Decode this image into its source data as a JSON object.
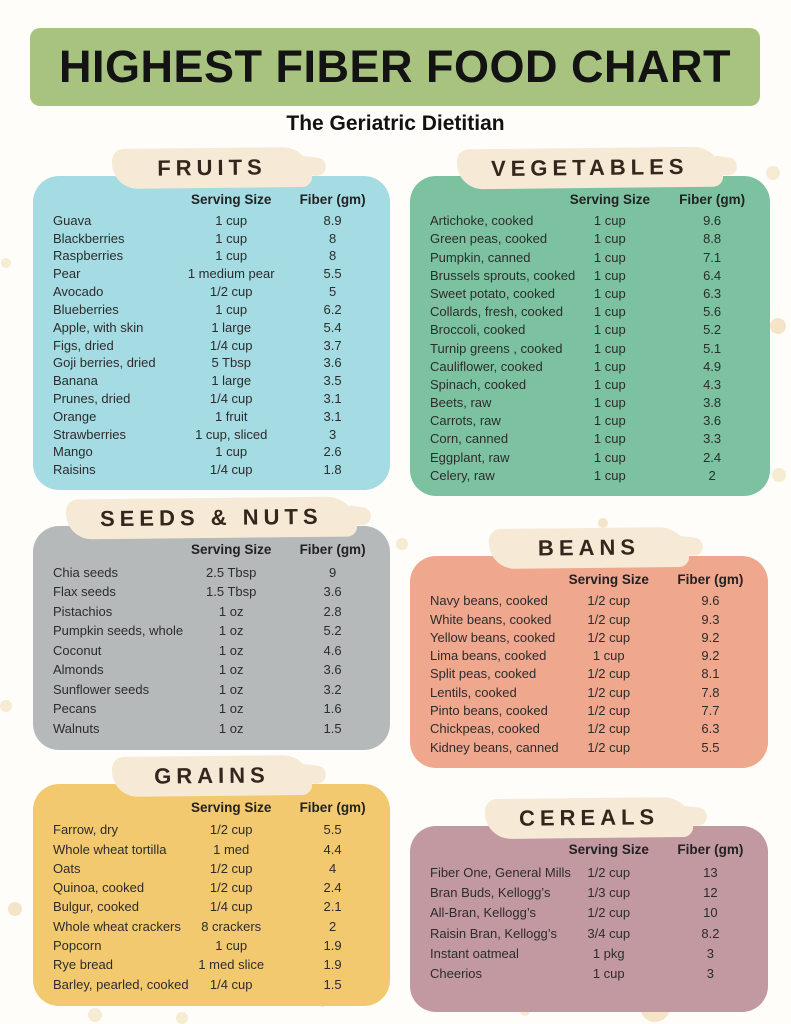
{
  "page": {
    "title": "HIGHEST FIBER FOOD CHART",
    "subtitle": "The Geriatric Dietitian",
    "title_banner_color": "#a7c37f",
    "label_bg_color": "#f6ead6",
    "background_color": "#fefdf9",
    "columns": {
      "serving": "Serving Size",
      "fiber": "Fiber (gm)"
    }
  },
  "sections": [
    {
      "title": "FRUITS",
      "color": "#a5dbe3",
      "rows": [
        {
          "name": "Guava",
          "serving": "1 cup",
          "fiber": "8.9"
        },
        {
          "name": "Blackberries",
          "serving": "1 cup",
          "fiber": "8"
        },
        {
          "name": "Raspberries",
          "serving": "1 cup",
          "fiber": "8"
        },
        {
          "name": "Pear",
          "serving": "1 medium pear",
          "fiber": "5.5"
        },
        {
          "name": "Avocado",
          "serving": "1/2 cup",
          "fiber": "5"
        },
        {
          "name": "Blueberries",
          "serving": "1 cup",
          "fiber": "6.2"
        },
        {
          "name": "Apple, with skin",
          "serving": "1 large",
          "fiber": "5.4"
        },
        {
          "name": "Figs, dried",
          "serving": "1/4 cup",
          "fiber": "3.7"
        },
        {
          "name": "Goji berries, dried",
          "serving": "5 Tbsp",
          "fiber": "3.6"
        },
        {
          "name": "Banana",
          "serving": "1 large",
          "fiber": "3.5"
        },
        {
          "name": "Prunes, dried",
          "serving": "1/4 cup",
          "fiber": "3.1"
        },
        {
          "name": "Orange",
          "serving": "1 fruit",
          "fiber": "3.1"
        },
        {
          "name": "Strawberries",
          "serving": "1 cup, sliced",
          "fiber": "3"
        },
        {
          "name": "Mango",
          "serving": "1 cup",
          "fiber": "2.6"
        },
        {
          "name": "Raisins",
          "serving": "1/4 cup",
          "fiber": "1.8"
        }
      ]
    },
    {
      "title": "VEGETABLES",
      "color": "#7dc2a0",
      "rows": [
        {
          "name": "Artichoke, cooked",
          "serving": "1 cup",
          "fiber": "9.6"
        },
        {
          "name": "Green peas, cooked",
          "serving": "1 cup",
          "fiber": "8.8"
        },
        {
          "name": "Pumpkin, canned",
          "serving": "1 cup",
          "fiber": "7.1"
        },
        {
          "name": "Brussels sprouts, cooked",
          "serving": "1 cup",
          "fiber": "6.4"
        },
        {
          "name": "Sweet potato, cooked",
          "serving": "1 cup",
          "fiber": "6.3"
        },
        {
          "name": "Collards, fresh, cooked",
          "serving": "1 cup",
          "fiber": "5.6"
        },
        {
          "name": "Broccoli, cooked",
          "serving": "1 cup",
          "fiber": "5.2"
        },
        {
          "name": "Turnip greens , cooked",
          "serving": "1 cup",
          "fiber": "5.1"
        },
        {
          "name": "Cauliflower, cooked",
          "serving": "1 cup",
          "fiber": "4.9"
        },
        {
          "name": "Spinach, cooked",
          "serving": "1 cup",
          "fiber": "4.3"
        },
        {
          "name": "Beets, raw",
          "serving": "1 cup",
          "fiber": "3.8"
        },
        {
          "name": "Carrots, raw",
          "serving": "1 cup",
          "fiber": "3.6"
        },
        {
          "name": "Corn, canned",
          "serving": "1 cup",
          "fiber": "3.3"
        },
        {
          "name": "Eggplant, raw",
          "serving": "1 cup",
          "fiber": "2.4"
        },
        {
          "name": "Celery, raw",
          "serving": "1 cup",
          "fiber": "2"
        }
      ]
    },
    {
      "title": "SEEDS & NUTS",
      "color": "#b6b9ba",
      "rows": [
        {
          "name": "Chia seeds",
          "serving": "2.5 Tbsp",
          "fiber": "9"
        },
        {
          "name": "Flax seeds",
          "serving": "1.5 Tbsp",
          "fiber": "3.6"
        },
        {
          "name": "Pistachios",
          "serving": "1 oz",
          "fiber": "2.8"
        },
        {
          "name": "Pumpkin seeds, whole",
          "serving": "1 oz",
          "fiber": "5.2"
        },
        {
          "name": "Coconut",
          "serving": "1 oz",
          "fiber": "4.6"
        },
        {
          "name": "Almonds",
          "serving": "1 oz",
          "fiber": "3.6"
        },
        {
          "name": "Sunflower seeds",
          "serving": "1 oz",
          "fiber": "3.2"
        },
        {
          "name": "Pecans",
          "serving": "1 oz",
          "fiber": "1.6"
        },
        {
          "name": "Walnuts",
          "serving": "1 oz",
          "fiber": "1.5"
        }
      ]
    },
    {
      "title": "BEANS",
      "color": "#efa78e",
      "rows": [
        {
          "name": "Navy beans, cooked",
          "serving": "1/2 cup",
          "fiber": "9.6"
        },
        {
          "name": "White beans, cooked",
          "serving": "1/2 cup",
          "fiber": "9.3"
        },
        {
          "name": "Yellow beans, cooked",
          "serving": "1/2 cup",
          "fiber": "9.2"
        },
        {
          "name": "Lima beans, cooked",
          "serving": "1 cup",
          "fiber": "9.2"
        },
        {
          "name": "Split peas, cooked",
          "serving": "1/2 cup",
          "fiber": "8.1"
        },
        {
          "name": "Lentils, cooked",
          "serving": "1/2 cup",
          "fiber": "7.8"
        },
        {
          "name": "Pinto beans, cooked",
          "serving": "1/2 cup",
          "fiber": "7.7"
        },
        {
          "name": "Chickpeas, cooked",
          "serving": "1/2 cup",
          "fiber": "6.3"
        },
        {
          "name": "Kidney beans, canned",
          "serving": "1/2 cup",
          "fiber": "5.5"
        }
      ]
    },
    {
      "title": "GRAINS",
      "color": "#f3c96f",
      "rows": [
        {
          "name": "Farrow, dry",
          "serving": "1/2 cup",
          "fiber": "5.5"
        },
        {
          "name": "Whole wheat tortilla",
          "serving": "1 med",
          "fiber": "4.4"
        },
        {
          "name": "Oats",
          "serving": "1/2 cup",
          "fiber": "4"
        },
        {
          "name": "Quinoa, cooked",
          "serving": "1/2 cup",
          "fiber": "2.4"
        },
        {
          "name": "Bulgur, cooked",
          "serving": "1/4 cup",
          "fiber": "2.1"
        },
        {
          "name": "Whole wheat crackers",
          "serving": "8 crackers",
          "fiber": "2"
        },
        {
          "name": "Popcorn",
          "serving": "1 cup",
          "fiber": "1.9"
        },
        {
          "name": "Rye bread",
          "serving": "1 med slice",
          "fiber": "1.9"
        },
        {
          "name": "Barley, pearled, cooked",
          "serving": "1/4 cup",
          "fiber": "1.5"
        }
      ]
    },
    {
      "title": "CEREALS",
      "color": "#c299a1",
      "rows": [
        {
          "name": "Fiber One, General Mills",
          "serving": "1/2 cup",
          "fiber": "13"
        },
        {
          "name": "Bran Buds, Kellogg’s",
          "serving": "1/3 cup",
          "fiber": "12"
        },
        {
          "name": "All-Bran, Kellogg’s",
          "serving": "1/2 cup",
          "fiber": "10"
        },
        {
          "name": "Raisin Bran, Kellogg’s",
          "serving": "3/4 cup",
          "fiber": "8.2"
        },
        {
          "name": "Instant oatmeal",
          "serving": "1 pkg",
          "fiber": "3"
        },
        {
          "name": "Cheerios",
          "serving": "1 cup",
          "fiber": "3"
        }
      ]
    }
  ]
}
